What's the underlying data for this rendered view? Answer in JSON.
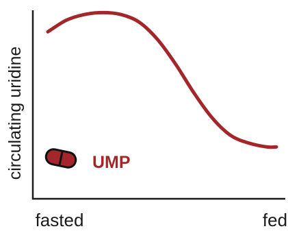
{
  "chart_data": {
    "type": "line",
    "title": "",
    "xlabel": "",
    "ylabel": "circulating uridine",
    "x_tick_labels": [
      "fasted",
      "fed"
    ],
    "series": [
      {
        "x": [
          0,
          0.08,
          0.16,
          0.24,
          0.32,
          0.4,
          0.48,
          0.56,
          0.64,
          0.72,
          0.8,
          0.88,
          0.96,
          1.0
        ],
        "values": [
          0.87,
          0.93,
          0.96,
          0.97,
          0.96,
          0.92,
          0.83,
          0.7,
          0.55,
          0.42,
          0.33,
          0.29,
          0.27,
          0.27
        ]
      }
    ],
    "xlim": [
      0,
      1
    ],
    "ylim": [
      0,
      1
    ],
    "grid": false,
    "annotation": {
      "label": "UMP",
      "icon": "capsule-pill-icon"
    },
    "colors": {
      "series": "#a3262a",
      "annotation": "#a3262a",
      "axis": "#1a1a1a"
    }
  }
}
